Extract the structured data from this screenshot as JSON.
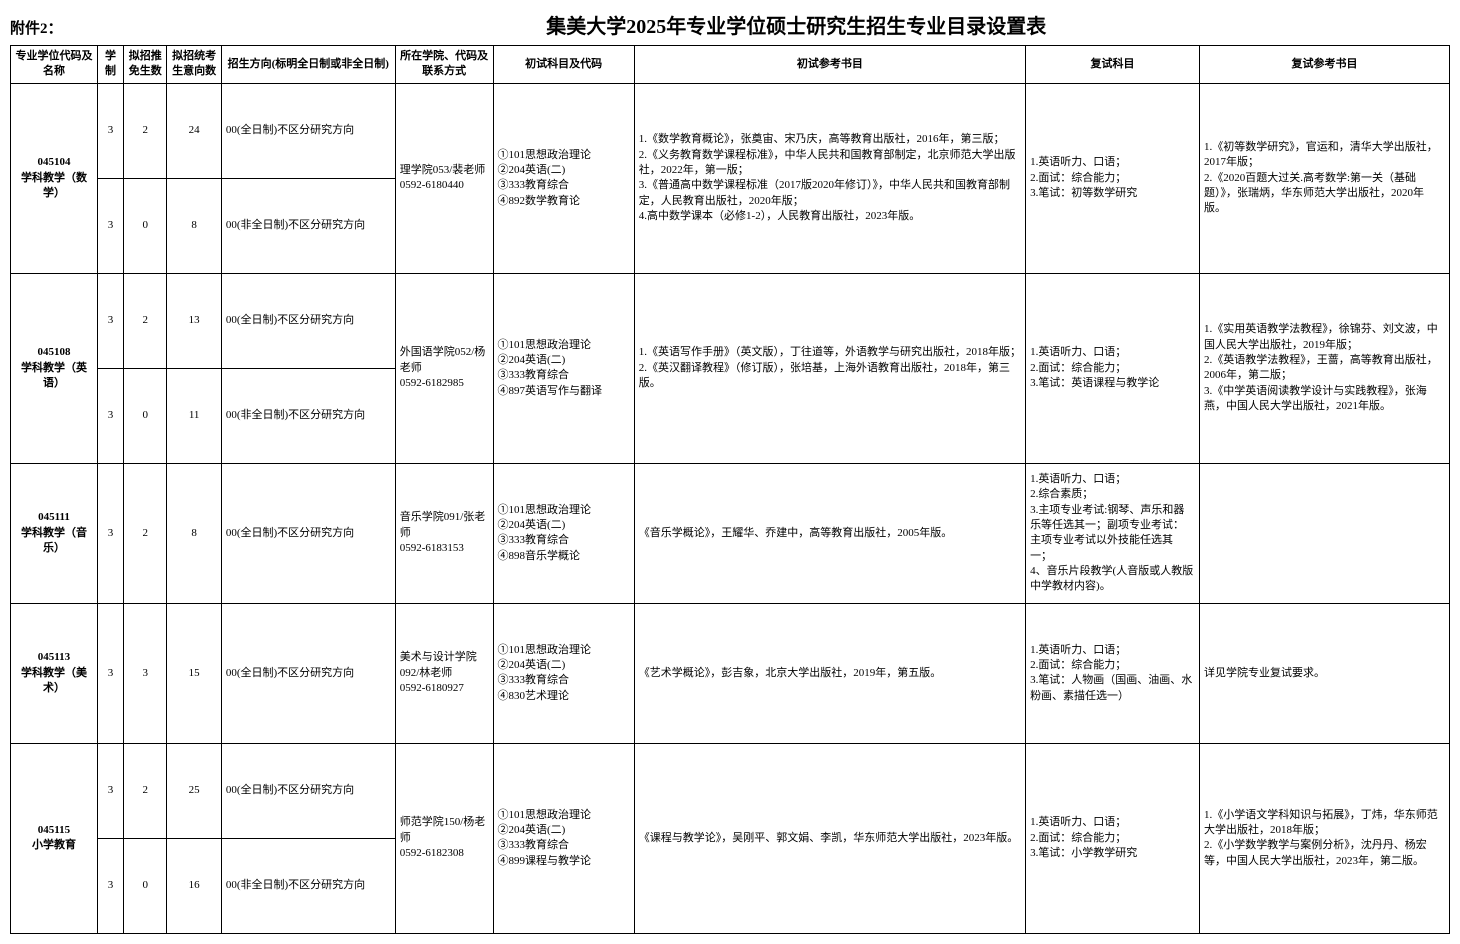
{
  "attachment_label": "附件2：",
  "page_title": "集美大学2025年专业学位硕士研究生招生专业目录设置表",
  "headers": {
    "code": "专业学位代码及名称",
    "system": "学制",
    "plan": "拟招推免生数",
    "exempt": "拟招统考生意向数",
    "direction": "招生方向(标明全日制或非全日制)",
    "contact": "所在学院、代码及联系方式",
    "init_subj": "初试科目及代码",
    "init_ref": "初试参考书目",
    "retest_subj": "复试科目",
    "retest_ref": "复试参考书目"
  },
  "rows": [
    {
      "code": "045104\n学科教学（数学）",
      "sub": [
        {
          "sys": "3",
          "plan": "2",
          "exempt": "24",
          "dir": "00(全日制)不区分研究方向"
        },
        {
          "sys": "3",
          "plan": "0",
          "exempt": "8",
          "dir": "00(非全日制)不区分研究方向"
        }
      ],
      "contact": "理学院053/裴老师\n0592-6180440",
      "init_subj": "①101思想政治理论\n②204英语(二)\n③333教育综合\n④892数学教育论",
      "init_ref": "1.《数学教育概论》，张奠宙、宋乃庆，高等教育出版社，2016年，第三版；\n2.《义务教育数学课程标准》，中华人民共和国教育部制定，北京师范大学出版社，2022年，第一版；\n3.《普通高中数学课程标准（2017版2020年修订）》，中华人民共和国教育部制定，人民教育出版社，2020年版；\n4.高中数学课本（必修1-2），人民教育出版社，2023年版。",
      "retest_subj": "1.英语听力、口语；\n2.面试：综合能力；\n3.笔试：初等数学研究",
      "retest_ref": "1.《初等数学研究》，官运和，清华大学出版社，2017年版；\n2.《2020百题大过关.高考数学:第一关（基础题）》，张瑞炳，华东师范大学出版社，2020年版。"
    },
    {
      "code": "045108\n学科教学（英语）",
      "sub": [
        {
          "sys": "3",
          "plan": "2",
          "exempt": "13",
          "dir": "00(全日制)不区分研究方向"
        },
        {
          "sys": "3",
          "plan": "0",
          "exempt": "11",
          "dir": "00(非全日制)不区分研究方向"
        }
      ],
      "contact": "外国语学院052/杨老师\n0592-6182985",
      "init_subj": "①101思想政治理论\n②204英语(二)\n③333教育综合\n④897英语写作与翻译",
      "init_ref": "1.《英语写作手册》（英文版），丁往道等，外语教学与研究出版社，2018年版；\n2.《英汉翻译教程》（修订版），张培基，上海外语教育出版社，2018年，第三版。",
      "retest_subj": "1.英语听力、口语；\n2.面试：综合能力；\n3.笔试：英语课程与教学论",
      "retest_ref": "1.《实用英语教学法教程》，徐锦芬、刘文波，中国人民大学出版社，2019年版；\n2.《英语教学法教程》，王蔷，高等教育出版社，2006年，第二版；\n3.《中学英语阅读教学设计与实践教程》，张海燕，中国人民大学出版社，2021年版。"
    },
    {
      "code": "045111\n学科教学（音乐）",
      "sub": [
        {
          "sys": "3",
          "plan": "2",
          "exempt": "8",
          "dir": "00(全日制)不区分研究方向"
        }
      ],
      "contact": "音乐学院091/张老师\n0592-6183153",
      "init_subj": "①101思想政治理论\n②204英语(二)\n③333教育综合\n④898音乐学概论",
      "init_ref": "《音乐学概论》，王耀华、乔建中，高等教育出版社，2005年版。",
      "retest_subj": "1.英语听力、口语；\n2.综合素质；\n3.主项专业考试:钢琴、声乐和器乐等任选其一；副项专业考试：主项专业考试以外技能任选其一；\n4、音乐片段教学(人音版或人教版中学教材内容)。",
      "retest_ref": ""
    },
    {
      "code": "045113\n学科教学（美术）",
      "sub": [
        {
          "sys": "3",
          "plan": "3",
          "exempt": "15",
          "dir": "00(全日制)不区分研究方向"
        }
      ],
      "contact": "美术与设计学院092/林老师\n0592-6180927",
      "init_subj": "①101思想政治理论\n②204英语(二)\n③333教育综合\n④830艺术理论",
      "init_ref": "《艺术学概论》，彭吉象，北京大学出版社，2019年，第五版。",
      "retest_subj": "1.英语听力、口语；\n2.面试：综合能力；\n3.笔试：人物画（国画、油画、水粉画、素描任选一）",
      "retest_ref": "详见学院专业复试要求。"
    },
    {
      "code": "045115\n小学教育",
      "sub": [
        {
          "sys": "3",
          "plan": "2",
          "exempt": "25",
          "dir": "00(全日制)不区分研究方向"
        },
        {
          "sys": "3",
          "plan": "0",
          "exempt": "16",
          "dir": "00(非全日制)不区分研究方向"
        }
      ],
      "contact": "师范学院150/杨老师\n0592-6182308",
      "init_subj": "①101思想政治理论\n②204英语(二)\n③333教育综合\n④899课程与教学论",
      "init_ref": "《课程与教学论》，吴刚平、郭文娟、李凯，华东师范大学出版社，2023年版。",
      "retest_subj": "1.英语听力、口语；\n2.面试：综合能力；\n3.笔试：小学教学研究",
      "retest_ref": "1.《小学语文学科知识与拓展》，丁炜，华东师范大学出版社，2018年版；\n2.《小学数学教学与案例分析》，沈丹丹、杨宏等，中国人民大学出版社，2023年，第二版。"
    }
  ],
  "row_heights": {
    "double": 95,
    "single": 140
  }
}
